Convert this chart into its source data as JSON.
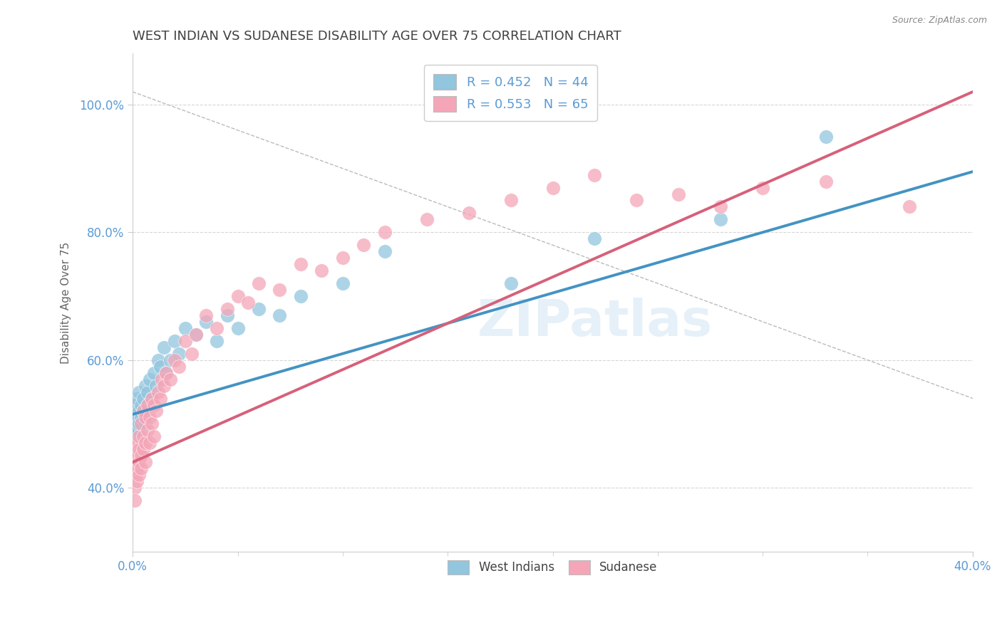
{
  "title": "WEST INDIAN VS SUDANESE DISABILITY AGE OVER 75 CORRELATION CHART",
  "source": "Source: ZipAtlas.com",
  "ylabel_label": "Disability Age Over 75",
  "xlim": [
    0.0,
    0.4
  ],
  "ylim": [
    0.3,
    1.08
  ],
  "xtick_positions": [
    0.0,
    0.4
  ],
  "xtick_labels": [
    "0.0%",
    "40.0%"
  ],
  "ytick_positions": [
    0.4,
    0.6,
    0.8,
    1.0
  ],
  "ytick_labels": [
    "40.0%",
    "60.0%",
    "80.0%",
    "100.0%"
  ],
  "legend_entry1": "R = 0.452   N = 44",
  "legend_entry2": "R = 0.553   N = 65",
  "legend_bottom1": "West Indians",
  "legend_bottom2": "Sudanese",
  "watermark": "ZIPatlas",
  "blue_color": "#92c5de",
  "pink_color": "#f4a6b8",
  "blue_line_color": "#4393c3",
  "pink_line_color": "#d6607a",
  "axis_label_color": "#5b9bd5",
  "title_color": "#404040",
  "grid_color": "#cccccc",
  "background_color": "#ffffff",
  "R_west": 0.452,
  "N_west": 44,
  "R_sudan": 0.553,
  "N_sudan": 65,
  "wi_x": [
    0.001,
    0.001,
    0.001,
    0.001,
    0.002,
    0.002,
    0.002,
    0.003,
    0.003,
    0.003,
    0.004,
    0.004,
    0.005,
    0.005,
    0.006,
    0.006,
    0.007,
    0.007,
    0.008,
    0.009,
    0.01,
    0.011,
    0.012,
    0.013,
    0.015,
    0.016,
    0.018,
    0.02,
    0.022,
    0.025,
    0.03,
    0.035,
    0.04,
    0.045,
    0.05,
    0.06,
    0.07,
    0.08,
    0.1,
    0.12,
    0.18,
    0.22,
    0.28,
    0.33
  ],
  "wi_y": [
    0.52,
    0.5,
    0.48,
    0.53,
    0.51,
    0.49,
    0.54,
    0.52,
    0.5,
    0.55,
    0.53,
    0.51,
    0.54,
    0.52,
    0.56,
    0.5,
    0.55,
    0.53,
    0.57,
    0.54,
    0.58,
    0.56,
    0.6,
    0.59,
    0.62,
    0.58,
    0.6,
    0.63,
    0.61,
    0.65,
    0.64,
    0.66,
    0.63,
    0.67,
    0.65,
    0.68,
    0.67,
    0.7,
    0.72,
    0.77,
    0.72,
    0.79,
    0.82,
    0.95
  ],
  "su_x": [
    0.001,
    0.001,
    0.001,
    0.001,
    0.001,
    0.002,
    0.002,
    0.002,
    0.002,
    0.003,
    0.003,
    0.003,
    0.003,
    0.004,
    0.004,
    0.004,
    0.005,
    0.005,
    0.005,
    0.006,
    0.006,
    0.006,
    0.007,
    0.007,
    0.008,
    0.008,
    0.009,
    0.009,
    0.01,
    0.01,
    0.011,
    0.012,
    0.013,
    0.014,
    0.015,
    0.016,
    0.018,
    0.02,
    0.022,
    0.025,
    0.028,
    0.03,
    0.035,
    0.04,
    0.045,
    0.05,
    0.055,
    0.06,
    0.07,
    0.08,
    0.09,
    0.1,
    0.11,
    0.12,
    0.14,
    0.16,
    0.18,
    0.2,
    0.22,
    0.24,
    0.26,
    0.28,
    0.3,
    0.33,
    0.37
  ],
  "su_y": [
    0.4,
    0.44,
    0.42,
    0.38,
    0.46,
    0.43,
    0.41,
    0.45,
    0.47,
    0.44,
    0.42,
    0.46,
    0.48,
    0.45,
    0.5,
    0.43,
    0.48,
    0.46,
    0.52,
    0.47,
    0.51,
    0.44,
    0.49,
    0.53,
    0.47,
    0.51,
    0.5,
    0.54,
    0.48,
    0.53,
    0.52,
    0.55,
    0.54,
    0.57,
    0.56,
    0.58,
    0.57,
    0.6,
    0.59,
    0.63,
    0.61,
    0.64,
    0.67,
    0.65,
    0.68,
    0.7,
    0.69,
    0.72,
    0.71,
    0.75,
    0.74,
    0.76,
    0.78,
    0.8,
    0.82,
    0.83,
    0.85,
    0.87,
    0.89,
    0.85,
    0.86,
    0.84,
    0.87,
    0.88,
    0.84
  ]
}
